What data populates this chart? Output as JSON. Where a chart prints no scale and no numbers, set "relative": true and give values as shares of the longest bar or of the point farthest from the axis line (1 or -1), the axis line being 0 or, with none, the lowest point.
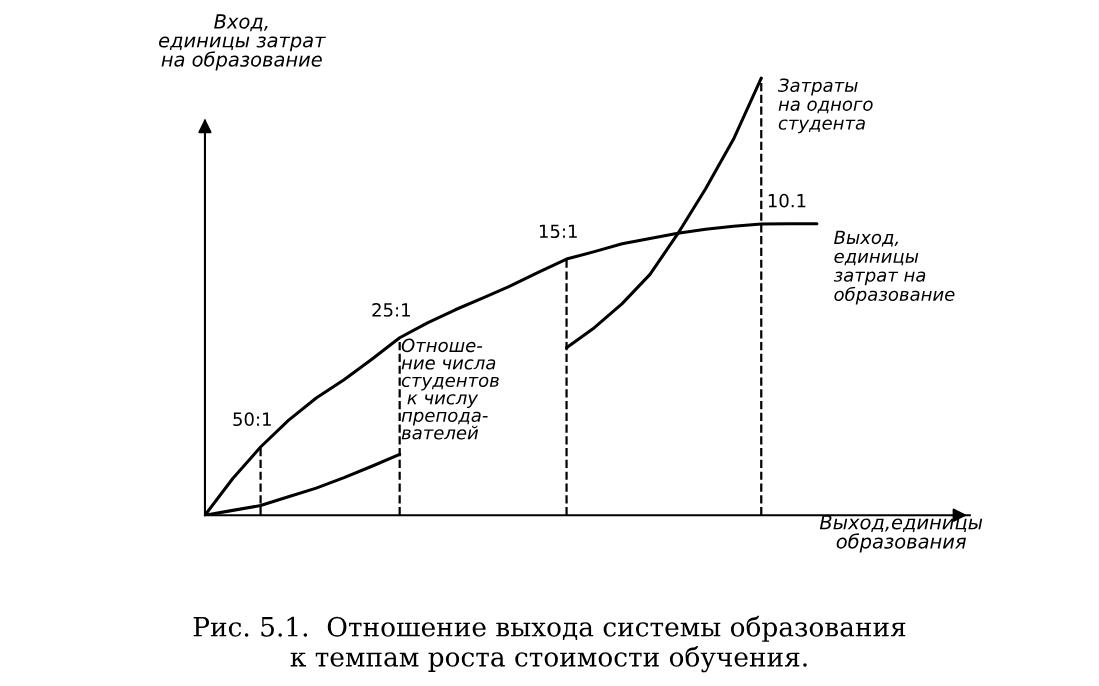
{
  "chart_data": {
    "type": "line",
    "relative": true,
    "xlabel": "Выход,единицы\nобразования",
    "ylabel": "Вход,\nединицы затрат\nна образование",
    "categories": [
      null,
      null,
      null,
      null,
      null,
      null,
      null,
      null,
      null,
      null,
      null,
      null,
      null,
      null,
      null,
      null,
      null,
      null,
      null,
      null,
      null,
      null,
      null
    ],
    "series": [
      {
        "name": "Выход,\nединицы\nзатрат на\nобразование",
        "color": "#000000",
        "values": [
          0,
          0.084,
          0.156,
          0.217,
          0.268,
          0.31,
          0.357,
          0.406,
          0.44,
          0.47,
          0.497,
          0.525,
          0.556,
          0.586,
          0.603,
          0.621,
          0.633,
          0.645,
          0.654,
          0.661,
          0.666,
          0.667,
          0.667
        ]
      },
      {
        "name": "Затраты\nна одного\nстудента",
        "color": "#000000",
        "values": [
          0,
          0.011,
          0.022,
          0.042,
          0.062,
          0.086,
          0.112,
          0.139,
          null,
          null,
          null,
          null,
          null,
          0.383,
          0.429,
          0.484,
          0.551,
          0.644,
          0.747,
          0.86,
          1.0,
          null,
          null
        ]
      }
    ],
    "annotations": [
      {
        "text": "50:1",
        "y": 0.156
      },
      {
        "text": "25:1",
        "y": 0.406
      },
      {
        "text": "15:1",
        "y": 0.586
      },
      {
        "text": "10.1",
        "y": 0.666
      },
      "Отноше-\nние числа\nстудентов\n к числу\nпрепода-\nвателей",
      "Рис. 5.1.  Отношение выхода системы образования\nк темпам роста стоимости обучения."
    ],
    "legend": false,
    "marker": "none",
    "line_style": "solid"
  }
}
